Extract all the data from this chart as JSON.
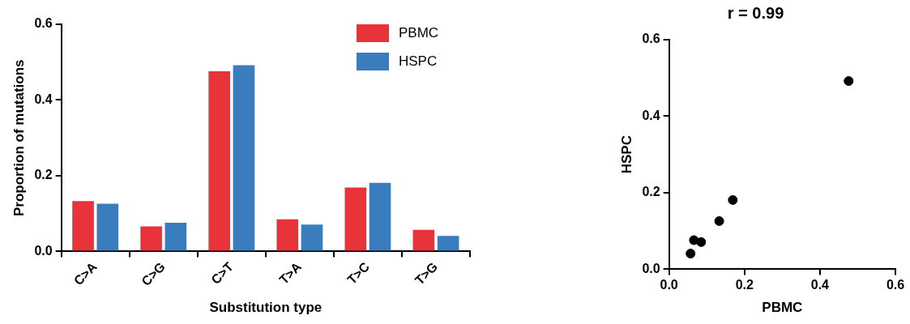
{
  "chart_data": [
    {
      "type": "bar",
      "xlabel": "Substitution type",
      "ylabel": "Proportion of mutations",
      "categories": [
        "C>A",
        "C>G",
        "C>T",
        "T>A",
        "T>C",
        "T>G"
      ],
      "series": [
        {
          "name": "PBMC",
          "color": "#e8333a",
          "values": [
            0.133,
            0.066,
            0.476,
            0.085,
            0.169,
            0.057
          ]
        },
        {
          "name": "HSPC",
          "color": "#3a7dbf",
          "values": [
            0.126,
            0.076,
            0.492,
            0.071,
            0.181,
            0.041
          ]
        }
      ],
      "ylim": [
        0,
        0.6
      ],
      "yticks": [
        {
          "value": 0,
          "label": "0.0"
        },
        {
          "value": 0.2,
          "label": "0.2"
        },
        {
          "value": 0.4,
          "label": "0.4"
        },
        {
          "value": 0.6,
          "label": "0.6"
        }
      ],
      "grid": false,
      "legend": "top right"
    },
    {
      "type": "scatter",
      "title": "r = 0.99",
      "xlabel": "PBMC",
      "ylabel": "HSPC",
      "series": [
        {
          "color": "#000000",
          "x": [
            0.133,
            0.066,
            0.476,
            0.085,
            0.169,
            0.057
          ],
          "values": [
            0.126,
            0.076,
            0.492,
            0.071,
            0.181,
            0.041
          ]
        }
      ],
      "xlim": [
        0,
        0.6
      ],
      "xticks": [
        {
          "value": 0,
          "label": "0.0"
        },
        {
          "value": 0.2,
          "label": "0.2"
        },
        {
          "value": 0.4,
          "label": "0.4"
        },
        {
          "value": 0.6,
          "label": "0.6"
        }
      ],
      "ylim": [
        0,
        0.6
      ],
      "yticks": [
        {
          "value": 0,
          "label": "0.0"
        },
        {
          "value": 0.2,
          "label": "0.2"
        },
        {
          "value": 0.4,
          "label": "0.4"
        },
        {
          "value": 0.6,
          "label": "0.6"
        }
      ],
      "grid": false,
      "marker": "circle"
    }
  ]
}
